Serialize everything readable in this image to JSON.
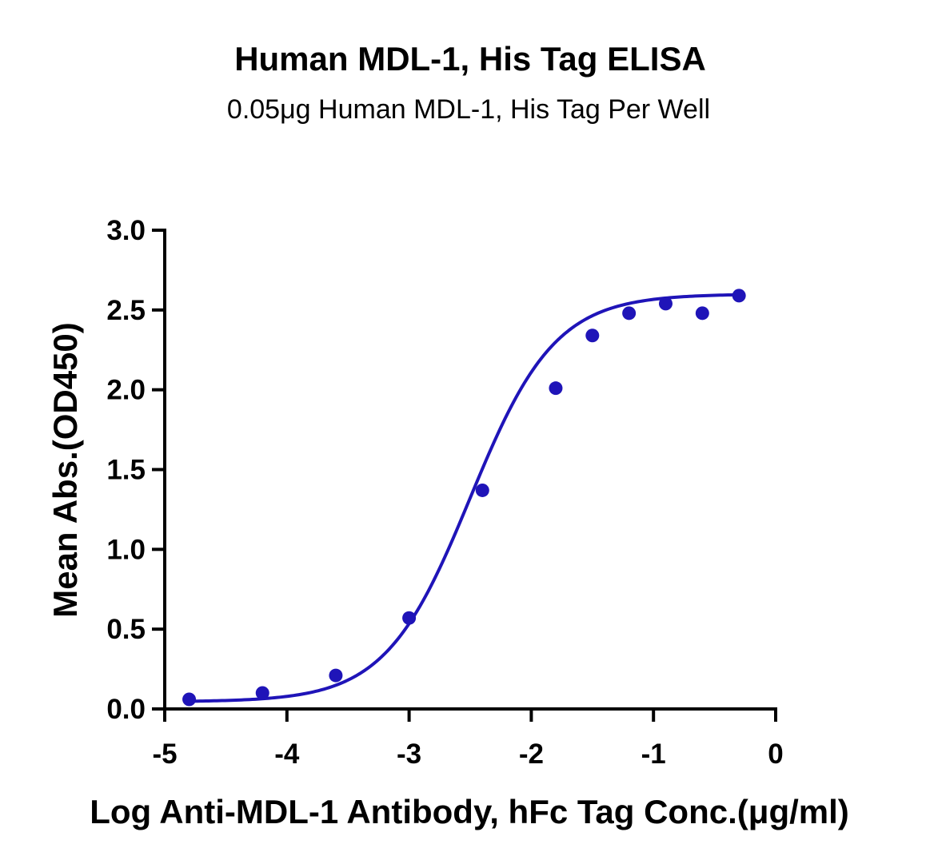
{
  "chart_data": {
    "type": "scatter",
    "title": "Human MDL-1, His Tag ELISA",
    "subtitle": "0.05μg Human MDL-1, His Tag Per Well",
    "xlabel": "Log Anti-MDL-1 Antibody, hFc Tag Conc.(μg/ml)",
    "ylabel": "Mean Abs.(OD450)",
    "xlim": [
      -5,
      0
    ],
    "ylim": [
      0,
      3.0
    ],
    "x_ticks": [
      "-5",
      "-4",
      "-3",
      "-2",
      "-1",
      "0"
    ],
    "y_ticks": [
      "0.0",
      "0.5",
      "1.0",
      "1.5",
      "2.0",
      "2.5",
      "3.0"
    ],
    "series": [
      {
        "color": "#1f14b8",
        "points": [
          {
            "x": -4.8,
            "y": 0.06
          },
          {
            "x": -4.2,
            "y": 0.1
          },
          {
            "x": -3.6,
            "y": 0.21
          },
          {
            "x": -3.0,
            "y": 0.57
          },
          {
            "x": -2.4,
            "y": 1.37
          },
          {
            "x": -1.8,
            "y": 2.01
          },
          {
            "x": -1.5,
            "y": 2.34
          },
          {
            "x": -1.2,
            "y": 2.48
          },
          {
            "x": -0.9,
            "y": 2.54
          },
          {
            "x": -0.6,
            "y": 2.48
          },
          {
            "x": -0.3,
            "y": 2.59
          }
        ],
        "fit_curve": {
          "model": "4PL",
          "bottom": 0.045,
          "top": 2.6,
          "log_ec50": -2.5,
          "hill": 1.25,
          "x_range": [
            -4.8,
            -0.3
          ]
        }
      }
    ],
    "grid": false,
    "legend": "none"
  }
}
